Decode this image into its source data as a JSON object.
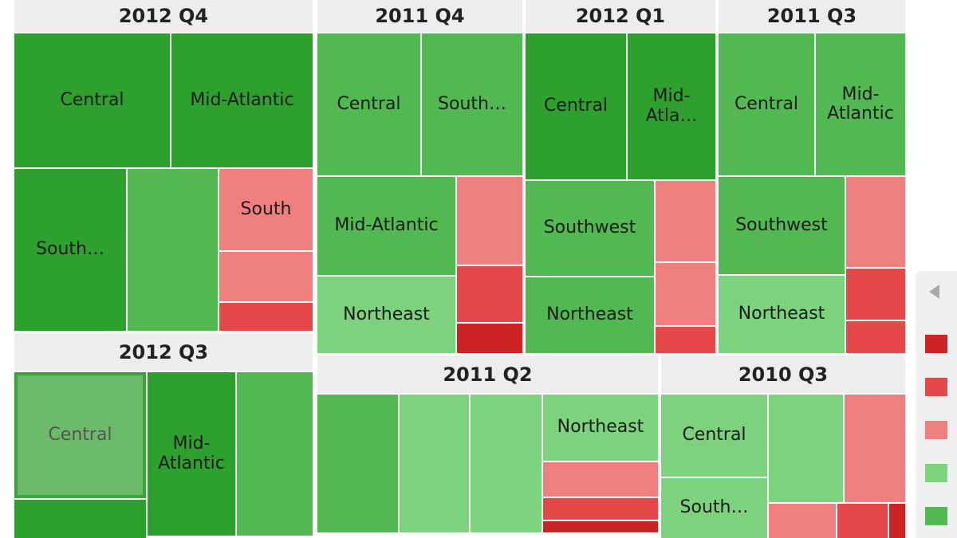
{
  "groups": [
    {
      "title": "2012 Q4",
      "cells": [
        "Central",
        "Mid-Atlantic",
        "South…",
        "South"
      ]
    },
    {
      "title": "2012 Q3",
      "cells": [
        "Central",
        "Mid-Atlantic"
      ]
    },
    {
      "title": "2011 Q4",
      "cells": [
        "Central",
        "South…",
        "Mid-Atlantic",
        "Northeast"
      ]
    },
    {
      "title": "2012 Q1",
      "cells": [
        "Central",
        "Mid-Atla…",
        "Southwest",
        "Northeast"
      ]
    },
    {
      "title": "2011 Q3",
      "cells": [
        "Central",
        "Mid-Atlantic",
        "Southwest",
        "Northeast"
      ]
    },
    {
      "title": "2011 Q2",
      "cells": [
        "Northeast"
      ]
    },
    {
      "title": "2010 Q3",
      "cells": [
        "Central",
        "South…"
      ]
    }
  ]
}
